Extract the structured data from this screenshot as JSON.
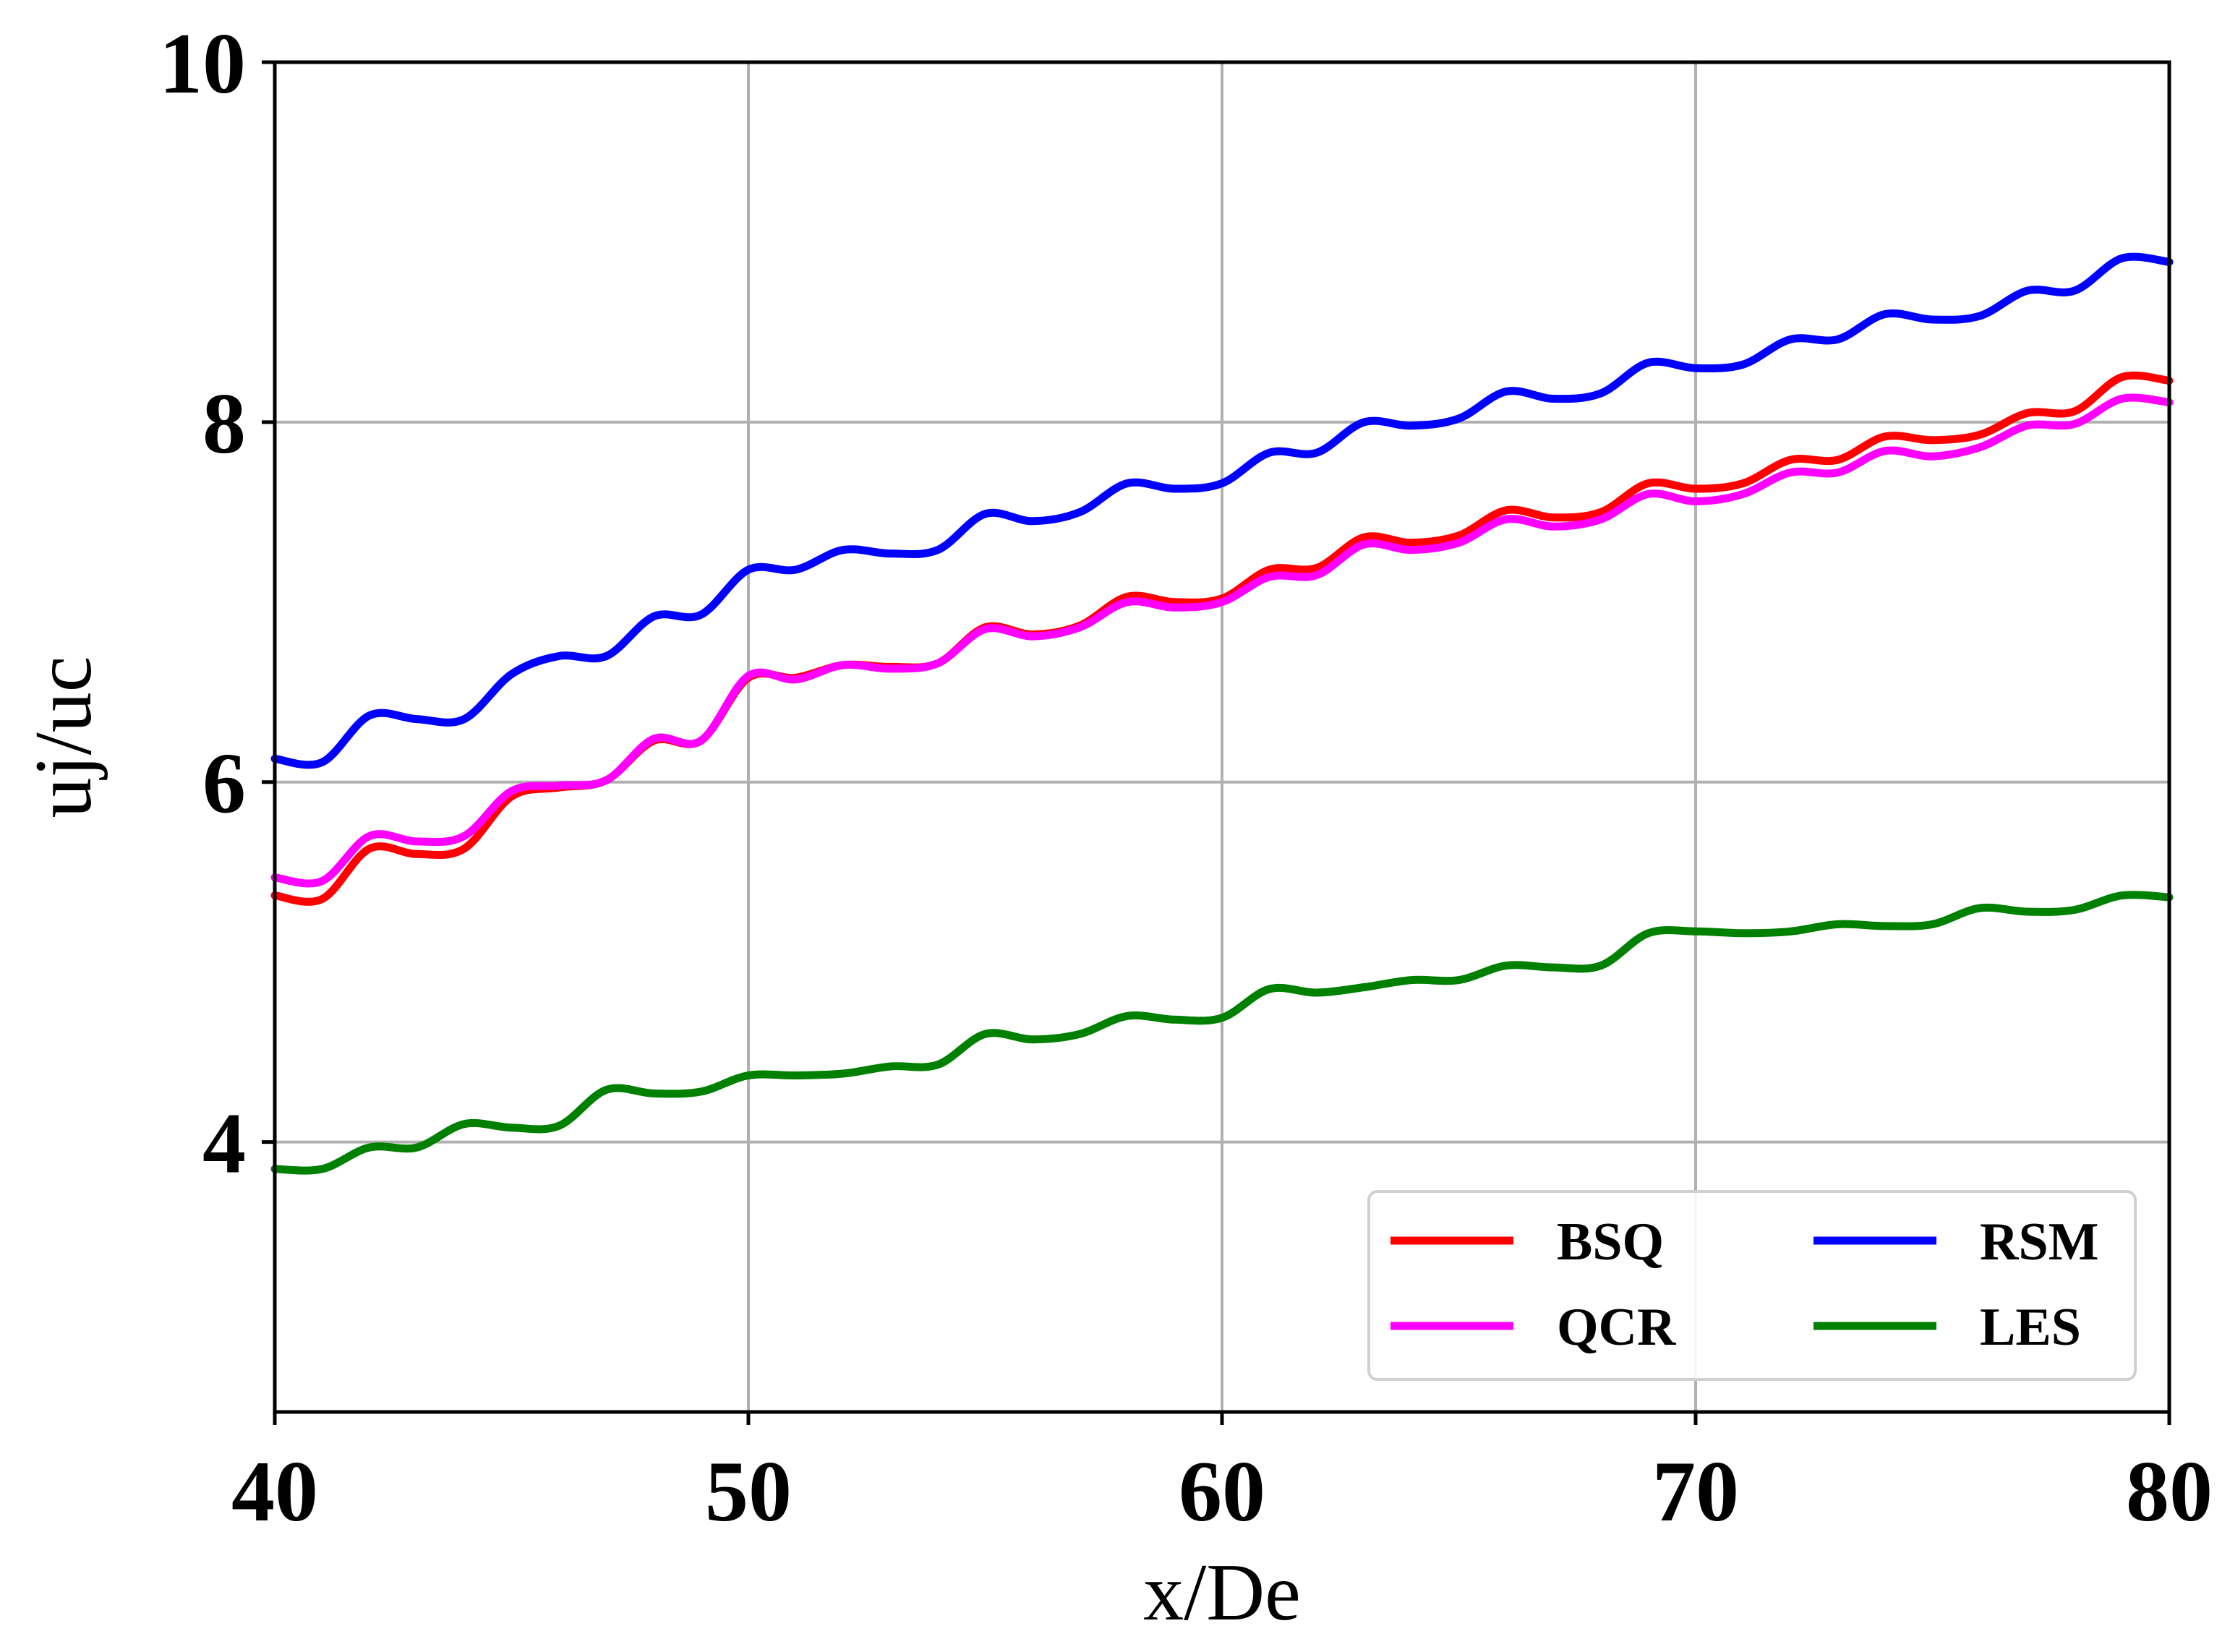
{
  "chart_data": {
    "type": "line",
    "title": "",
    "xlabel": "x/De",
    "ylabel": "uj/uc",
    "xlim": [
      40,
      80
    ],
    "ylim": [
      2.5,
      10
    ],
    "x_ticks": [
      40,
      50,
      60,
      70,
      80
    ],
    "y_ticks": [
      4,
      6,
      8,
      10
    ],
    "grid": true,
    "legend_position": "lower-right",
    "legend_columns": 2,
    "series": [
      {
        "name": "BSQ",
        "color": "#ff0000",
        "x": [
          40,
          41,
          42,
          43,
          44,
          45,
          46,
          47,
          48,
          49,
          50,
          51,
          52,
          53,
          54,
          55,
          56,
          57,
          58,
          59,
          60,
          61,
          62,
          63,
          64,
          65,
          66,
          67,
          68,
          69,
          70,
          71,
          72,
          73,
          74,
          75,
          76,
          77,
          78,
          79,
          80
        ],
        "y": [
          5.37,
          5.35,
          5.63,
          5.6,
          5.63,
          5.92,
          5.97,
          6.01,
          6.23,
          6.23,
          6.58,
          6.58,
          6.65,
          6.64,
          6.66,
          6.86,
          6.82,
          6.87,
          7.03,
          7.0,
          7.02,
          7.18,
          7.19,
          7.36,
          7.33,
          7.37,
          7.51,
          7.47,
          7.5,
          7.66,
          7.63,
          7.66,
          7.79,
          7.79,
          7.92,
          7.9,
          7.93,
          8.05,
          8.06,
          8.25,
          8.23
        ]
      },
      {
        "name": "QCR",
        "color": "#ff00ff",
        "x": [
          40,
          41,
          42,
          43,
          44,
          45,
          46,
          47,
          48,
          49,
          50,
          51,
          52,
          53,
          54,
          55,
          56,
          57,
          58,
          59,
          60,
          61,
          62,
          63,
          64,
          65,
          66,
          67,
          68,
          69,
          70,
          71,
          72,
          73,
          74,
          75,
          76,
          77,
          78,
          79,
          80
        ],
        "y": [
          5.47,
          5.45,
          5.7,
          5.67,
          5.7,
          5.95,
          5.98,
          6.01,
          6.24,
          6.23,
          6.59,
          6.57,
          6.65,
          6.63,
          6.66,
          6.85,
          6.81,
          6.86,
          7.0,
          6.97,
          7.0,
          7.14,
          7.15,
          7.32,
          7.29,
          7.33,
          7.46,
          7.42,
          7.46,
          7.6,
          7.56,
          7.6,
          7.72,
          7.72,
          7.84,
          7.81,
          7.86,
          7.98,
          7.99,
          8.13,
          8.11
        ]
      },
      {
        "name": "RSM",
        "color": "#0000ff",
        "x": [
          40,
          41,
          42,
          43,
          44,
          45,
          46,
          47,
          48,
          49,
          50,
          51,
          52,
          53,
          54,
          55,
          56,
          57,
          58,
          59,
          60,
          61,
          62,
          63,
          64,
          65,
          66,
          67,
          68,
          69,
          70,
          71,
          72,
          73,
          74,
          75,
          76,
          77,
          78,
          79,
          80
        ],
        "y": [
          6.13,
          6.11,
          6.37,
          6.35,
          6.35,
          6.6,
          6.7,
          6.7,
          6.92,
          6.93,
          7.18,
          7.18,
          7.29,
          7.27,
          7.29,
          7.49,
          7.45,
          7.5,
          7.66,
          7.63,
          7.66,
          7.83,
          7.83,
          8.0,
          7.98,
          8.02,
          8.17,
          8.13,
          8.16,
          8.33,
          8.3,
          8.32,
          8.46,
          8.46,
          8.6,
          8.57,
          8.59,
          8.73,
          8.73,
          8.91,
          8.89
        ]
      },
      {
        "name": "LES",
        "color": "#008000",
        "x": [
          40,
          41,
          42,
          43,
          44,
          45,
          46,
          47,
          48,
          49,
          50,
          51,
          52,
          53,
          54,
          55,
          56,
          57,
          58,
          59,
          60,
          61,
          62,
          63,
          64,
          65,
          66,
          67,
          68,
          69,
          70,
          71,
          72,
          73,
          74,
          75,
          76,
          77,
          78,
          79,
          80
        ],
        "y": [
          3.85,
          3.85,
          3.97,
          3.97,
          4.1,
          4.08,
          4.09,
          4.29,
          4.27,
          4.28,
          4.37,
          4.37,
          4.38,
          4.42,
          4.43,
          4.6,
          4.57,
          4.6,
          4.7,
          4.68,
          4.69,
          4.85,
          4.83,
          4.86,
          4.9,
          4.9,
          4.98,
          4.97,
          4.98,
          5.16,
          5.17,
          5.16,
          5.17,
          5.21,
          5.2,
          5.21,
          5.3,
          5.28,
          5.29,
          5.37,
          5.36
        ]
      }
    ]
  }
}
